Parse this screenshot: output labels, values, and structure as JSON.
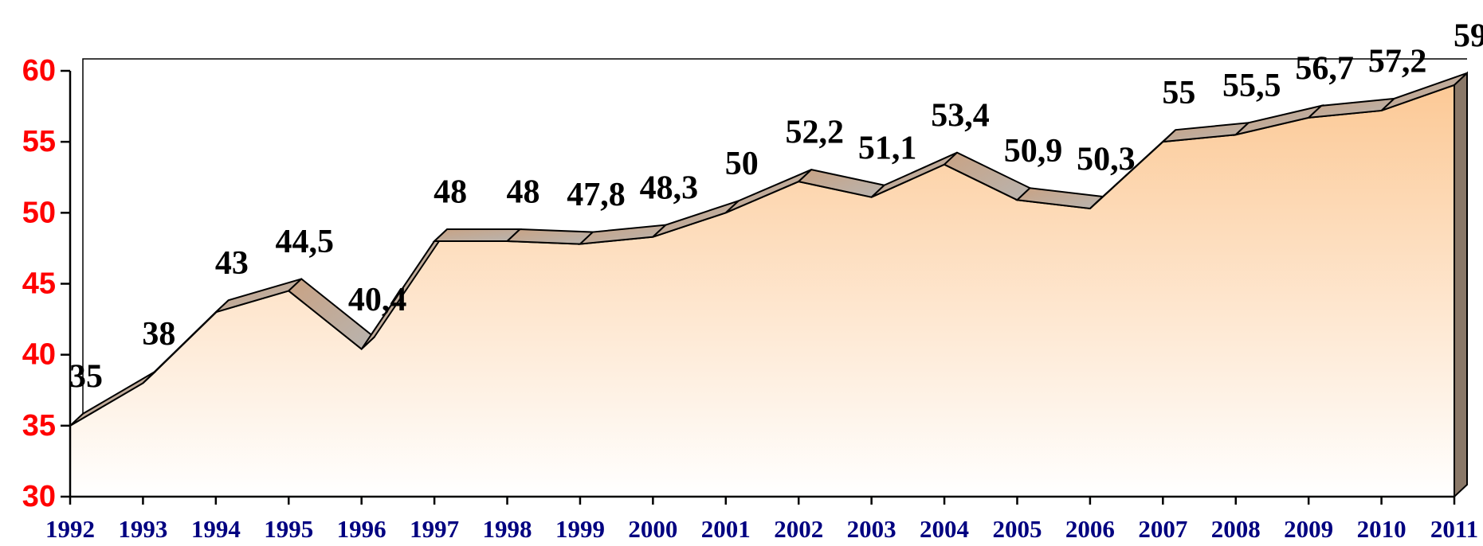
{
  "chart_data": {
    "type": "area3d",
    "categories": [
      "1992",
      "1993",
      "1994",
      "1995",
      "1996",
      "1997",
      "1998",
      "1999",
      "2000",
      "2001",
      "2002",
      "2003",
      "2004",
      "2005",
      "2006",
      "2007",
      "2008",
      "2009",
      "2010",
      "2011"
    ],
    "values": [
      35,
      38,
      43,
      44.5,
      40.4,
      48,
      48,
      47.8,
      48.3,
      50,
      52.2,
      51.1,
      53.4,
      50.9,
      50.3,
      55,
      55.5,
      56.7,
      57.2,
      59
    ],
    "value_labels": [
      "35",
      "38",
      "43",
      "44,5",
      "40,4",
      "48",
      "48",
      "47,8",
      "48,3",
      "50",
      "52,2",
      "51,1",
      "53,4",
      "50,9",
      "50,3",
      "55",
      "55,5",
      "56,7",
      "57,2",
      "59"
    ],
    "color": "#fcc996",
    "ylim": [
      30,
      60
    ],
    "yticks": [
      30,
      35,
      40,
      45,
      50,
      55,
      60
    ]
  }
}
